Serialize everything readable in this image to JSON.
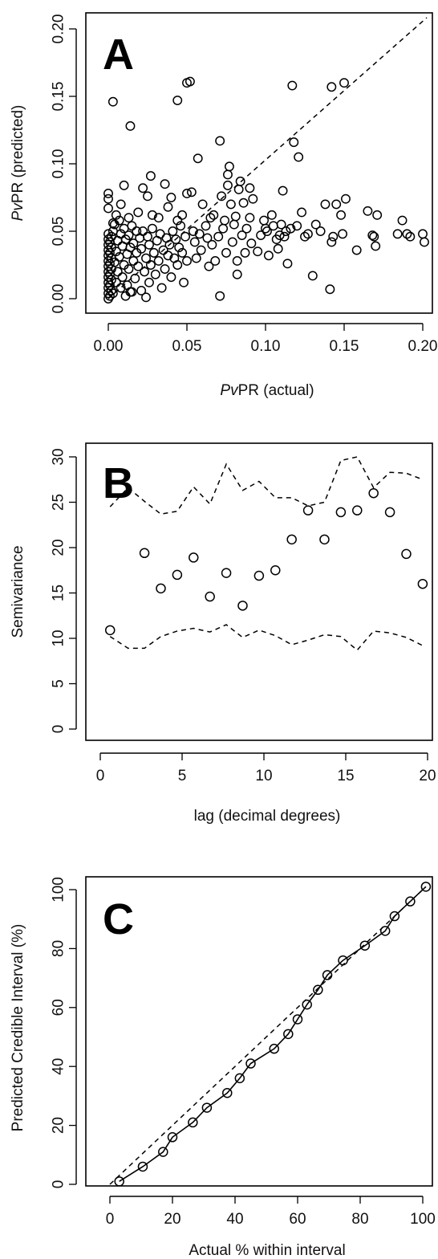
{
  "chart_data": [
    {
      "type": "scatter",
      "panel_label": "A",
      "xlabel": "PvPR (actual)",
      "ylabel": "PvPR (predicted)",
      "xlabel_parts": [
        {
          "text": "Pv",
          "italic": true
        },
        {
          "text": "PR (actual)",
          "italic": false
        }
      ],
      "ylabel_parts": [
        {
          "text": "Pv",
          "italic": true
        },
        {
          "text": "PR (predicted)",
          "italic": false
        }
      ],
      "xlim": [
        0,
        0.2
      ],
      "ylim": [
        0,
        0.2
      ],
      "xticks": [
        "0.00",
        "0.05",
        "0.10",
        "0.15",
        "0.20"
      ],
      "yticks": [
        "0.00",
        "0.05",
        "0.10",
        "0.15",
        "0.20"
      ],
      "reference_line": "y = x (dashed)",
      "points": [
        [
          0.0,
          0.0
        ],
        [
          0.0,
          0.004
        ],
        [
          0.0,
          0.008
        ],
        [
          0.0,
          0.012
        ],
        [
          0.0,
          0.016
        ],
        [
          0.0,
          0.02
        ],
        [
          0.0,
          0.024
        ],
        [
          0.0,
          0.028
        ],
        [
          0.0,
          0.032
        ],
        [
          0.0,
          0.036
        ],
        [
          0.0,
          0.04
        ],
        [
          0.0,
          0.044
        ],
        [
          0.0,
          0.048
        ],
        [
          0.0,
          0.067
        ],
        [
          0.0,
          0.074
        ],
        [
          0.0,
          0.078
        ],
        [
          0.001,
          0.002
        ],
        [
          0.001,
          0.01
        ],
        [
          0.001,
          0.018
        ],
        [
          0.001,
          0.026
        ],
        [
          0.001,
          0.034
        ],
        [
          0.001,
          0.042
        ],
        [
          0.002,
          0.006
        ],
        [
          0.002,
          0.014
        ],
        [
          0.002,
          0.022
        ],
        [
          0.002,
          0.03
        ],
        [
          0.002,
          0.038
        ],
        [
          0.002,
          0.046
        ],
        [
          0.003,
          0.05
        ],
        [
          0.003,
          0.004
        ],
        [
          0.004,
          0.027
        ],
        [
          0.004,
          0.055
        ],
        [
          0.005,
          0.012
        ],
        [
          0.005,
          0.035
        ],
        [
          0.006,
          0.043
        ],
        [
          0.006,
          0.02
        ],
        [
          0.007,
          0.058
        ],
        [
          0.007,
          0.031
        ],
        [
          0.008,
          0.008
        ],
        [
          0.008,
          0.048
        ],
        [
          0.009,
          0.039
        ],
        [
          0.009,
          0.016
        ],
        [
          0.01,
          0.025
        ],
        [
          0.01,
          0.052
        ],
        [
          0.011,
          0.002
        ],
        [
          0.011,
          0.044
        ],
        [
          0.012,
          0.033
        ],
        [
          0.012,
          0.01
        ],
        [
          0.013,
          0.047
        ],
        [
          0.013,
          0.022
        ],
        [
          0.014,
          0.038
        ],
        [
          0.014,
          0.005
        ],
        [
          0.015,
          0.054
        ],
        [
          0.016,
          0.028
        ],
        [
          0.016,
          0.041
        ],
        [
          0.017,
          0.015
        ],
        [
          0.018,
          0.05
        ],
        [
          0.018,
          0.034
        ],
        [
          0.019,
          0.024
        ],
        [
          0.02,
          0.045
        ],
        [
          0.021,
          0.006
        ],
        [
          0.021,
          0.037
        ],
        [
          0.022,
          0.05
        ],
        [
          0.023,
          0.02
        ],
        [
          0.024,
          0.03
        ],
        [
          0.025,
          0.046
        ],
        [
          0.026,
          0.012
        ],
        [
          0.026,
          0.04
        ],
        [
          0.027,
          0.025
        ],
        [
          0.028,
          0.052
        ],
        [
          0.029,
          0.034
        ],
        [
          0.03,
          0.018
        ],
        [
          0.031,
          0.043
        ],
        [
          0.032,
          0.028
        ],
        [
          0.033,
          0.048
        ],
        [
          0.034,
          0.008
        ],
        [
          0.035,
          0.036
        ],
        [
          0.036,
          0.022
        ],
        [
          0.037,
          0.045
        ],
        [
          0.038,
          0.032
        ],
        [
          0.039,
          0.04
        ],
        [
          0.04,
          0.016
        ],
        [
          0.041,
          0.05
        ],
        [
          0.042,
          0.03
        ],
        [
          0.043,
          0.044
        ],
        [
          0.044,
          0.025
        ],
        [
          0.045,
          0.038
        ],
        [
          0.046,
          0.054
        ],
        [
          0.047,
          0.034
        ],
        [
          0.048,
          0.012
        ],
        [
          0.049,
          0.046
        ],
        [
          0.05,
          0.028
        ],
        [
          0.005,
          0.062
        ],
        [
          0.008,
          0.07
        ],
        [
          0.01,
          0.084
        ],
        [
          0.013,
          0.06
        ],
        [
          0.019,
          0.064
        ],
        [
          0.022,
          0.082
        ],
        [
          0.025,
          0.076
        ],
        [
          0.027,
          0.091
        ],
        [
          0.028,
          0.062
        ],
        [
          0.032,
          0.06
        ],
        [
          0.036,
          0.085
        ],
        [
          0.038,
          0.068
        ],
        [
          0.04,
          0.075
        ],
        [
          0.044,
          0.058
        ],
        [
          0.047,
          0.062
        ],
        [
          0.05,
          0.078
        ],
        [
          0.053,
          0.079
        ],
        [
          0.054,
          0.05
        ],
        [
          0.055,
          0.042
        ],
        [
          0.056,
          0.03
        ],
        [
          0.057,
          0.104
        ],
        [
          0.058,
          0.048
        ],
        [
          0.059,
          0.036
        ],
        [
          0.06,
          0.07
        ],
        [
          0.062,
          0.054
        ],
        [
          0.063,
          0.045
        ],
        [
          0.064,
          0.024
        ],
        [
          0.065,
          0.06
        ],
        [
          0.066,
          0.04
        ],
        [
          0.067,
          0.062
        ],
        [
          0.068,
          0.028
        ],
        [
          0.07,
          0.046
        ],
        [
          0.071,
          0.002
        ],
        [
          0.071,
          0.117
        ],
        [
          0.072,
          0.076
        ],
        [
          0.073,
          0.052
        ],
        [
          0.074,
          0.058
        ],
        [
          0.075,
          0.034
        ],
        [
          0.076,
          0.084
        ],
        [
          0.076,
          0.092
        ],
        [
          0.077,
          0.098
        ],
        [
          0.078,
          0.07
        ],
        [
          0.079,
          0.042
        ],
        [
          0.08,
          0.055
        ],
        [
          0.081,
          0.061
        ],
        [
          0.082,
          0.028
        ],
        [
          0.082,
          0.018
        ],
        [
          0.083,
          0.081
        ],
        [
          0.084,
          0.087
        ],
        [
          0.085,
          0.047
        ],
        [
          0.086,
          0.071
        ],
        [
          0.087,
          0.034
        ],
        [
          0.088,
          0.052
        ],
        [
          0.09,
          0.06
        ],
        [
          0.09,
          0.082
        ],
        [
          0.091,
          0.041
        ],
        [
          0.092,
          0.074
        ],
        [
          0.095,
          0.035
        ],
        [
          0.097,
          0.047
        ],
        [
          0.099,
          0.058
        ],
        [
          0.1,
          0.052
        ],
        [
          0.101,
          0.05
        ],
        [
          0.102,
          0.032
        ],
        [
          0.104,
          0.062
        ],
        [
          0.105,
          0.054
        ],
        [
          0.107,
          0.044
        ],
        [
          0.108,
          0.037
        ],
        [
          0.109,
          0.047
        ],
        [
          0.11,
          0.055
        ],
        [
          0.111,
          0.08
        ],
        [
          0.112,
          0.046
        ],
        [
          0.113,
          0.05
        ],
        [
          0.114,
          0.026
        ],
        [
          0.116,
          0.052
        ],
        [
          0.117,
          0.158
        ],
        [
          0.118,
          0.116
        ],
        [
          0.12,
          0.054
        ],
        [
          0.121,
          0.105
        ],
        [
          0.123,
          0.064
        ],
        [
          0.125,
          0.046
        ],
        [
          0.127,
          0.048
        ],
        [
          0.13,
          0.017
        ],
        [
          0.132,
          0.055
        ],
        [
          0.135,
          0.05
        ],
        [
          0.138,
          0.07
        ],
        [
          0.141,
          0.007
        ],
        [
          0.142,
          0.042
        ],
        [
          0.142,
          0.157
        ],
        [
          0.143,
          0.046
        ],
        [
          0.145,
          0.07
        ],
        [
          0.148,
          0.062
        ],
        [
          0.149,
          0.048
        ],
        [
          0.15,
          0.16
        ],
        [
          0.151,
          0.074
        ],
        [
          0.158,
          0.036
        ],
        [
          0.165,
          0.065
        ],
        [
          0.168,
          0.047
        ],
        [
          0.169,
          0.046
        ],
        [
          0.17,
          0.039
        ],
        [
          0.171,
          0.062
        ],
        [
          0.184,
          0.048
        ],
        [
          0.187,
          0.058
        ],
        [
          0.19,
          0.048
        ],
        [
          0.192,
          0.046
        ],
        [
          0.2,
          0.048
        ],
        [
          0.201,
          0.042
        ],
        [
          0.003,
          0.146
        ],
        [
          0.014,
          0.128
        ],
        [
          0.044,
          0.147
        ],
        [
          0.05,
          0.16
        ],
        [
          0.052,
          0.161
        ],
        [
          0.003,
          0.056
        ],
        [
          0.015,
          0.005
        ],
        [
          0.024,
          0.001
        ]
      ]
    },
    {
      "type": "scatter",
      "panel_label": "B",
      "xlabel": "lag (decimal degrees)",
      "ylabel": "Semivariance",
      "xlim": [
        0,
        20
      ],
      "ylim": [
        0,
        30
      ],
      "xticks": [
        "0",
        "5",
        "10",
        "15",
        "20"
      ],
      "yticks": [
        "0",
        "5",
        "10",
        "15",
        "20",
        "25",
        "30"
      ],
      "points_x": [
        0.6,
        2.7,
        3.7,
        4.7,
        5.7,
        6.7,
        7.7,
        8.7,
        9.7,
        10.7,
        11.7,
        12.7,
        13.7,
        14.7,
        15.7,
        16.7,
        17.7,
        18.7,
        19.7
      ],
      "points_y": [
        10.9,
        19.4,
        15.5,
        17.0,
        18.9,
        14.6,
        17.2,
        13.6,
        16.9,
        17.5,
        20.9,
        24.1,
        20.9,
        23.9,
        24.1,
        26.0,
        23.9,
        19.3,
        16.0
      ],
      "envelope_upper_x": [
        0.6,
        1.7,
        2.7,
        3.7,
        4.7,
        5.7,
        6.7,
        7.7,
        8.7,
        9.7,
        10.7,
        11.7,
        12.7,
        13.7,
        14.7,
        15.7,
        16.7,
        17.7,
        18.7,
        19.7
      ],
      "envelope_upper_y": [
        24.5,
        26.6,
        25.1,
        23.7,
        24.0,
        26.7,
        24.8,
        29.2,
        26.3,
        27.3,
        25.5,
        25.5,
        24.6,
        25.0,
        29.6,
        30.0,
        26.6,
        28.3,
        28.2,
        27.5
      ],
      "envelope_lower_x": [
        0.6,
        1.7,
        2.7,
        3.7,
        4.7,
        5.7,
        6.7,
        7.7,
        8.7,
        9.7,
        10.7,
        11.7,
        12.7,
        13.7,
        14.7,
        15.7,
        16.7,
        17.7,
        18.7,
        19.7
      ],
      "envelope_lower_y": [
        10.2,
        8.9,
        8.9,
        10.2,
        10.8,
        11.1,
        10.7,
        11.5,
        10.1,
        10.9,
        10.3,
        9.3,
        9.8,
        10.4,
        10.2,
        8.7,
        10.8,
        10.6,
        10.1,
        9.2
      ]
    },
    {
      "type": "line",
      "panel_label": "C",
      "xlabel": "Actual % within interval",
      "ylabel": "Predicted Credible Interval (%)",
      "xlim": [
        0,
        100
      ],
      "ylim": [
        0,
        100
      ],
      "xticks": [
        "0",
        "20",
        "40",
        "60",
        "80",
        "100"
      ],
      "yticks": [
        "0",
        "20",
        "40",
        "60",
        "80",
        "100"
      ],
      "reference_line": "y = x (dashed)",
      "x": [
        3,
        10.5,
        17,
        20,
        26.5,
        31,
        37.5,
        41.5,
        45,
        52.5,
        57,
        60,
        63,
        66.5,
        69.5,
        74.5,
        81.5,
        88,
        91,
        96,
        101
      ],
      "y": [
        1,
        6,
        11,
        16,
        21,
        26,
        31,
        36,
        41,
        46,
        51,
        56,
        61,
        66,
        71,
        76,
        81,
        86,
        91,
        96,
        101
      ]
    }
  ]
}
